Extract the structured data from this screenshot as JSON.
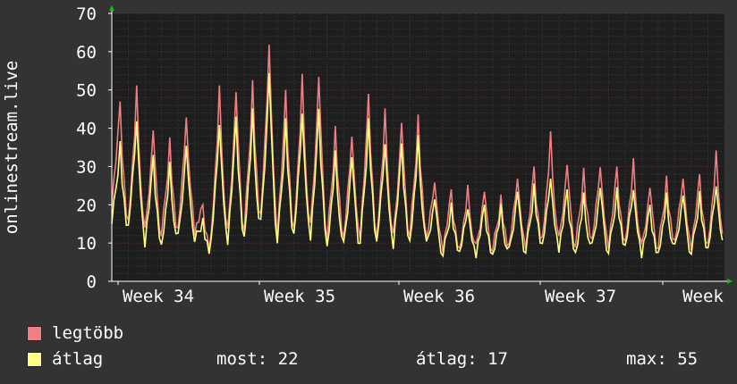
{
  "chart_data": {
    "type": "line",
    "ylabel": "onlinestream.live",
    "ylim": [
      0,
      70
    ],
    "yticks": [
      0,
      10,
      20,
      30,
      40,
      50,
      60,
      70
    ],
    "x_tick_labels": [
      "Week 34",
      "Week 35",
      "Week 36",
      "Week 37",
      "Week"
    ],
    "grid": true,
    "series": [
      {
        "name": "legtöbb",
        "color": "#f07f82",
        "daily_peaks": [
          47,
          50,
          40,
          37,
          44,
          20,
          50,
          50,
          52,
          63,
          50,
          53,
          54,
          40,
          39,
          49,
          44,
          42,
          43,
          27,
          24,
          24,
          24,
          22,
          28,
          30,
          38,
          31,
          29,
          31,
          30,
          31,
          25,
          27,
          28,
          28,
          33
        ],
        "daily_mins": [
          16,
          10,
          8,
          8,
          8,
          12,
          6,
          6,
          7,
          9,
          6,
          7,
          7,
          6,
          6,
          6,
          6,
          6,
          7,
          8,
          6,
          6,
          6,
          6,
          6,
          6,
          7,
          7,
          6,
          7,
          6,
          7,
          6,
          6,
          7,
          6,
          6
        ]
      },
      {
        "name": "átlag",
        "color": "#ffff80",
        "daily_peaks": [
          36,
          43,
          33,
          30,
          36,
          16,
          42,
          43,
          44,
          55,
          42,
          45,
          45,
          33,
          33,
          42,
          37,
          36,
          37,
          22,
          20,
          20,
          20,
          19,
          24,
          25,
          28,
          24,
          22,
          25,
          24,
          25,
          20,
          22,
          23,
          23,
          26
        ],
        "daily_mins": [
          12,
          9,
          6,
          6,
          7,
          10,
          5,
          5,
          6,
          8,
          5,
          6,
          6,
          5,
          5,
          5,
          5,
          5,
          6,
          7,
          5,
          5,
          5,
          5,
          5,
          5,
          6,
          6,
          5,
          6,
          5,
          6,
          5,
          5,
          6,
          5,
          5
        ]
      }
    ],
    "legend": [
      {
        "name": "legtöbb",
        "color": "#f07f82"
      },
      {
        "name": "átlag",
        "color": "#ffff80"
      }
    ],
    "stats": {
      "most_label": "most:",
      "most_value": "22",
      "atlag_label": "átlag:",
      "atlag_value": "17",
      "max_label": "max:",
      "max_value": "55"
    }
  }
}
